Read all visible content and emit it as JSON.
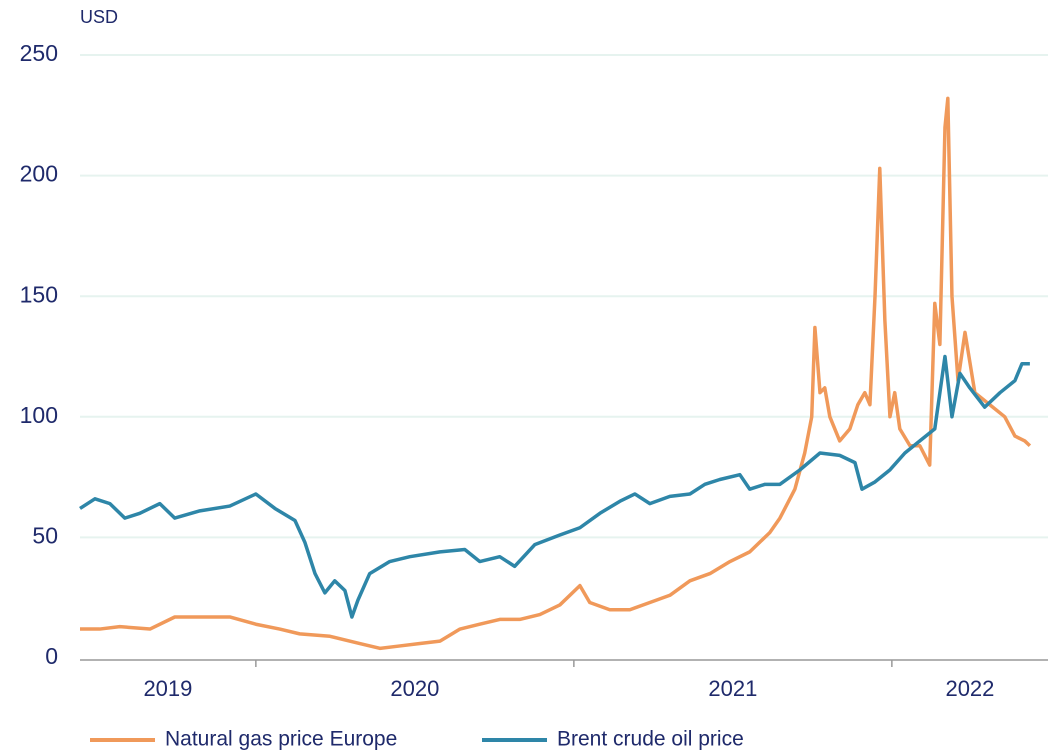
{
  "chart_data": {
    "type": "line",
    "y_unit": "USD",
    "year_labels": [
      "2019",
      "2020",
      "2021",
      "2022"
    ],
    "xlim": [
      2019.447,
      2022.491
    ],
    "xticks": [
      2020,
      2021,
      2022
    ],
    "ylim": [
      0,
      250
    ],
    "yticks": [
      0,
      50,
      100,
      150,
      200,
      250
    ],
    "grid": true,
    "series": [
      {
        "name": "Natural gas price Europe",
        "color": "#f0995a",
        "x": [
          2019.447,
          2019.509,
          2019.572,
          2019.667,
          2019.745,
          2019.824,
          2019.918,
          2020.0,
          2020.075,
          2020.138,
          2020.233,
          2020.327,
          2020.39,
          2020.453,
          2020.516,
          2020.579,
          2020.642,
          2020.704,
          2020.767,
          2020.83,
          2020.893,
          2020.956,
          2021.019,
          2021.05,
          2021.113,
          2021.176,
          2021.239,
          2021.302,
          2021.365,
          2021.428,
          2021.491,
          2021.553,
          2021.616,
          2021.648,
          2021.695,
          2021.726,
          2021.748,
          2021.758,
          2021.774,
          2021.789,
          2021.805,
          2021.836,
          2021.868,
          2021.893,
          2021.915,
          2021.931,
          2021.947,
          2021.962,
          2021.978,
          2021.994,
          2022.009,
          2022.025,
          2022.057,
          2022.088,
          2022.119,
          2022.135,
          2022.151,
          2022.167,
          2022.176,
          2022.189,
          2022.208,
          2022.23,
          2022.261,
          2022.308,
          2022.355,
          2022.387,
          2022.418,
          2022.434
        ],
        "values": [
          12,
          12,
          13,
          12,
          17,
          17,
          17,
          14,
          12,
          10,
          9,
          6,
          4,
          5,
          6,
          7,
          12,
          14,
          16,
          16,
          18,
          22,
          30,
          23,
          20,
          20,
          23,
          26,
          32,
          35,
          40,
          44,
          52,
          58,
          70,
          85,
          100,
          137,
          110,
          112,
          100,
          90,
          95,
          105,
          110,
          105,
          150,
          203,
          140,
          100,
          110,
          95,
          88,
          88,
          80,
          147,
          130,
          220,
          232,
          150,
          115,
          135,
          110,
          105,
          100,
          92,
          90,
          88
        ]
      },
      {
        "name": "Brent crude oil price",
        "color": "#2e86a8",
        "x": [
          2019.447,
          2019.494,
          2019.541,
          2019.588,
          2019.635,
          2019.698,
          2019.745,
          2019.824,
          2019.918,
          2020.0,
          2020.06,
          2020.123,
          2020.154,
          2020.186,
          2020.217,
          2020.248,
          2020.28,
          2020.302,
          2020.321,
          2020.358,
          2020.421,
          2020.484,
          2020.579,
          2020.657,
          2020.704,
          2020.767,
          2020.814,
          2020.877,
          2020.956,
          2021.019,
          2021.082,
          2021.145,
          2021.192,
          2021.239,
          2021.302,
          2021.365,
          2021.412,
          2021.459,
          2021.522,
          2021.553,
          2021.601,
          2021.648,
          2021.711,
          2021.774,
          2021.836,
          2021.884,
          2021.906,
          2021.947,
          2021.994,
          2022.041,
          2022.088,
          2022.135,
          2022.167,
          2022.189,
          2022.214,
          2022.245,
          2022.292,
          2022.34,
          2022.387,
          2022.409,
          2022.434
        ],
        "values": [
          62,
          66,
          64,
          58,
          60,
          64,
          58,
          61,
          63,
          68,
          62,
          57,
          48,
          35,
          27,
          32,
          28,
          17,
          24,
          35,
          40,
          42,
          44,
          45,
          40,
          42,
          38,
          47,
          51,
          54,
          60,
          65,
          68,
          64,
          67,
          68,
          72,
          74,
          76,
          70,
          72,
          72,
          78,
          85,
          84,
          81,
          70,
          73,
          78,
          85,
          90,
          95,
          125,
          100,
          118,
          112,
          104,
          110,
          115,
          122,
          122
        ]
      }
    ]
  }
}
